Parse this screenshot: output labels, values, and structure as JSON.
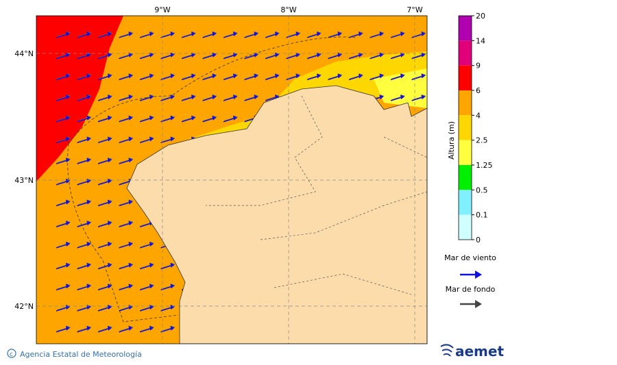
{
  "map": {
    "lon_labels": [
      "9°W",
      "8°W",
      "7°W"
    ],
    "lat_labels": [
      "44°N",
      "43°N",
      "42°N"
    ]
  },
  "legend": {
    "title": "Altura (m)",
    "levels": [
      "20",
      "14",
      "9",
      "6",
      "4",
      "2.5",
      "1.25",
      "0.5",
      "0.1",
      "0"
    ],
    "colors": [
      "#b000b0",
      "#e0007a",
      "#ff0000",
      "#ffa500",
      "#ffd700",
      "#ffff40",
      "#00f000",
      "#80f0ff",
      "#d0ffff"
    ],
    "wind_sea": "Mar de viento",
    "swell": "Mar de fondo"
  },
  "footer": {
    "credit": "Agencia Estatal de Meteorología",
    "logo": "aemet"
  }
}
